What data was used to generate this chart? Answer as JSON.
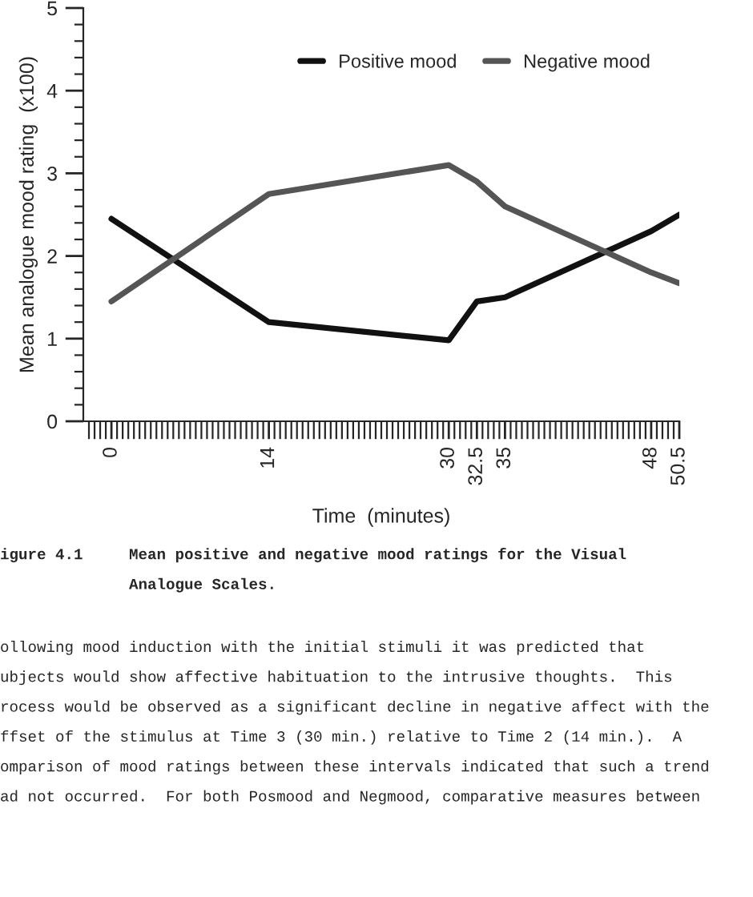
{
  "chart_data": {
    "type": "line",
    "xlabel": "Time  (minutes)",
    "ylabel": "Mean analogue mood rating  (x100)",
    "series": [
      {
        "name": "Positive mood",
        "color": "#111111",
        "x": [
          0,
          14,
          30,
          32.5,
          35,
          48,
          50.5
        ],
        "values": [
          2.45,
          1.2,
          0.98,
          1.45,
          1.5,
          2.3,
          2.5
        ]
      },
      {
        "name": "Negative mood",
        "color": "#555555",
        "x": [
          0,
          14,
          30,
          32.5,
          35,
          48,
          50.5
        ],
        "values": [
          1.45,
          2.75,
          3.1,
          2.9,
          2.6,
          1.8,
          1.67
        ]
      }
    ],
    "xlim": [
      -2.5,
      50.5
    ],
    "ylim": [
      0,
      5
    ],
    "xticks": [
      0,
      14,
      30,
      32.5,
      35,
      48,
      50.5,
      {
        "value": -2,
        "label": null
      },
      {
        "value": -1.5,
        "label": null
      },
      {
        "value": -1,
        "label": null
      },
      {
        "value": -0.5,
        "label": null
      },
      {
        "value": 0.5,
        "label": null
      },
      {
        "value": 1,
        "label": null
      },
      {
        "value": 1.5,
        "label": null
      },
      {
        "value": 2,
        "label": null
      },
      {
        "value": 2.5,
        "label": null
      },
      {
        "value": 3,
        "label": null
      },
      {
        "value": 3.5,
        "label": null
      },
      {
        "value": 4,
        "label": null
      },
      {
        "value": 4.5,
        "label": null
      },
      {
        "value": 5,
        "label": null
      },
      {
        "value": 5.5,
        "label": null
      },
      {
        "value": 6,
        "label": null
      },
      {
        "value": 6.5,
        "label": null
      },
      {
        "value": 7,
        "label": null
      },
      {
        "value": 7.5,
        "label": null
      },
      {
        "value": 8,
        "label": null
      },
      {
        "value": 8.5,
        "label": null
      },
      {
        "value": 9,
        "label": null
      },
      {
        "value": 9.5,
        "label": null
      },
      {
        "value": 10,
        "label": null
      },
      {
        "value": 10.5,
        "label": null
      },
      {
        "value": 11,
        "label": null
      },
      {
        "value": 11.5,
        "label": null
      },
      {
        "value": 12,
        "label": null
      },
      {
        "value": 12.5,
        "label": null
      },
      {
        "value": 13,
        "label": null
      },
      {
        "value": 13.5,
        "label": null
      },
      {
        "value": 14.5,
        "label": null
      },
      {
        "value": 15,
        "label": null
      },
      {
        "value": 15.5,
        "label": null
      },
      {
        "value": 16,
        "label": null
      },
      {
        "value": 16.5,
        "label": null
      },
      {
        "value": 17,
        "label": null
      },
      {
        "value": 17.5,
        "label": null
      },
      {
        "value": 18,
        "label": null
      },
      {
        "value": 18.5,
        "label": null
      },
      {
        "value": 19,
        "label": null
      },
      {
        "value": 19.5,
        "label": null
      },
      {
        "value": 20,
        "label": null
      },
      {
        "value": 20.5,
        "label": null
      },
      {
        "value": 21,
        "label": null
      },
      {
        "value": 21.5,
        "label": null
      },
      {
        "value": 22,
        "label": null
      },
      {
        "value": 22.5,
        "label": null
      },
      {
        "value": 23,
        "label": null
      },
      {
        "value": 23.5,
        "label": null
      },
      {
        "value": 24,
        "label": null
      },
      {
        "value": 24.5,
        "label": null
      },
      {
        "value": 25,
        "label": null
      },
      {
        "value": 25.5,
        "label": null
      },
      {
        "value": 26,
        "label": null
      },
      {
        "value": 26.5,
        "label": null
      },
      {
        "value": 27,
        "label": null
      },
      {
        "value": 27.5,
        "label": null
      },
      {
        "value": 28,
        "label": null
      },
      {
        "value": 28.5,
        "label": null
      },
      {
        "value": 29,
        "label": null
      },
      {
        "value": 29.5,
        "label": null
      },
      {
        "value": 30.5,
        "label": null
      },
      {
        "value": 31,
        "label": null
      },
      {
        "value": 31.5,
        "label": null
      },
      {
        "value": 32,
        "label": null
      },
      {
        "value": 33,
        "label": null
      },
      {
        "value": 33.5,
        "label": null
      },
      {
        "value": 34,
        "label": null
      },
      {
        "value": 34.5,
        "label": null
      },
      {
        "value": 35.5,
        "label": null
      },
      {
        "value": 36,
        "label": null
      },
      {
        "value": 36.5,
        "label": null
      },
      {
        "value": 37,
        "label": null
      },
      {
        "value": 37.5,
        "label": null
      },
      {
        "value": 38,
        "label": null
      },
      {
        "value": 38.5,
        "label": null
      },
      {
        "value": 39,
        "label": null
      },
      {
        "value": 39.5,
        "label": null
      },
      {
        "value": 40,
        "label": null
      },
      {
        "value": 40.5,
        "label": null
      },
      {
        "value": 41,
        "label": null
      },
      {
        "value": 41.5,
        "label": null
      },
      {
        "value": 42,
        "label": null
      },
      {
        "value": 42.5,
        "label": null
      },
      {
        "value": 43,
        "label": null
      },
      {
        "value": 43.5,
        "label": null
      },
      {
        "value": 44,
        "label": null
      },
      {
        "value": 44.5,
        "label": null
      },
      {
        "value": 45,
        "label": null
      },
      {
        "value": 45.5,
        "label": null
      },
      {
        "value": 46,
        "label": null
      },
      {
        "value": 46.5,
        "label": null
      },
      {
        "value": 47,
        "label": null
      },
      {
        "value": 47.5,
        "label": null
      },
      {
        "value": 48.5,
        "label": null
      },
      {
        "value": 49,
        "label": null
      },
      {
        "value": 49.5,
        "label": null
      },
      {
        "value": 50,
        "label": null
      }
    ],
    "yticks": [
      0,
      1,
      2,
      3,
      4,
      5,
      {
        "value": 0.2,
        "label": null
      },
      {
        "value": 0.4,
        "label": null
      },
      {
        "value": 0.6,
        "label": null
      },
      {
        "value": 0.8,
        "label": null
      },
      {
        "value": 1.2,
        "label": null
      },
      {
        "value": 1.4,
        "label": null
      },
      {
        "value": 1.6,
        "label": null
      },
      {
        "value": 1.8,
        "label": null
      },
      {
        "value": 2.2,
        "label": null
      },
      {
        "value": 2.4,
        "label": null
      },
      {
        "value": 2.6,
        "label": null
      },
      {
        "value": 2.8,
        "label": null
      },
      {
        "value": 3.2,
        "label": null
      },
      {
        "value": 3.4,
        "label": null
      },
      {
        "value": 3.6,
        "label": null
      },
      {
        "value": 3.8,
        "label": null
      },
      {
        "value": 4.2,
        "label": null
      },
      {
        "value": 4.4,
        "label": null
      },
      {
        "value": 4.6,
        "label": null
      },
      {
        "value": 4.8,
        "label": null
      }
    ],
    "grid": false,
    "legend": "top right",
    "marker": "none",
    "line_style": "solid",
    "annotations": [
      "igure 4.1     Mean positive and negative mood ratings for the Visual\n              Analogue Scales.",
      "ollowing mood induction with the initial stimuli it was predicted that\nubjects would show affective habituation to the intrusive thoughts.  This\nrocess would be observed as a significant decline in negative affect with the\nffset of the stimulus at Time 3 (30 min.) relative to Time 2 (14 min.).  A\nomparison of mood ratings between these intervals indicated that such a trend\nad not occurred.  For both Posmood and Negmood, comparative measures between"
    ]
  }
}
